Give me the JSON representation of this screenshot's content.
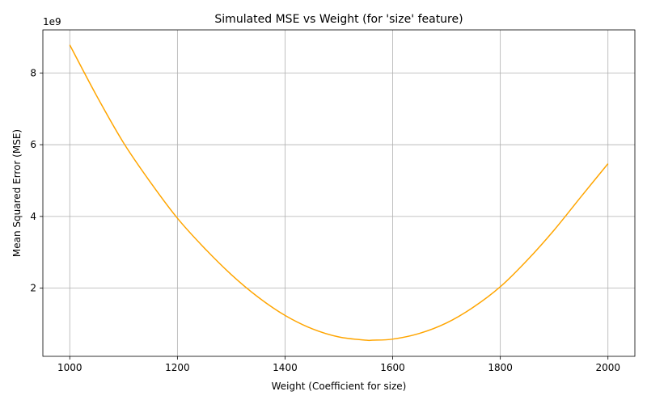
{
  "chart_data": {
    "type": "line",
    "title": "Simulated MSE vs Weight (for 'size' feature)",
    "xlabel": "Weight (Coefficient for size)",
    "ylabel": "Mean Squared Error (MSE)",
    "y_offset_label": "1e9",
    "xlim": [
      950,
      2050
    ],
    "ylim": [
      100000000.0,
      9200000000.0
    ],
    "x_ticks": [
      1000,
      1200,
      1400,
      1600,
      1800,
      2000
    ],
    "x_tick_labels": [
      "1000",
      "1200",
      "1400",
      "1600",
      "1800",
      "2000"
    ],
    "y_ticks": [
      2000000000.0,
      4000000000.0,
      6000000000.0,
      8000000000.0
    ],
    "y_tick_labels": [
      "2",
      "4",
      "6",
      "8"
    ],
    "grid": true,
    "line_color": "#FFA500",
    "x": [
      1000,
      1050,
      1100,
      1150,
      1200,
      1250,
      1300,
      1350,
      1400,
      1450,
      1500,
      1550,
      1563,
      1600,
      1650,
      1700,
      1750,
      1800,
      1850,
      1900,
      1950,
      2000
    ],
    "y": [
      8780000000.0,
      7360000000.0,
      6050000000.0,
      4950000000.0,
      3950000000.0,
      3120000000.0,
      2380000000.0,
      1750000000.0,
      1240000000.0,
      870000000.0,
      640000000.0,
      550000000.0,
      550000000.0,
      580000000.0,
      740000000.0,
      1030000000.0,
      1470000000.0,
      2040000000.0,
      2780000000.0,
      3620000000.0,
      4550000000.0,
      5470000000.0
    ]
  }
}
